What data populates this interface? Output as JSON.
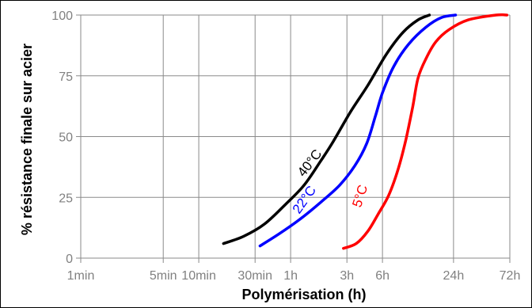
{
  "chart_data": {
    "type": "line",
    "xlabel": "Polymérisation (h)",
    "ylabel": "% résistance finale sur acier",
    "x_scale": "log",
    "x_ticks": [
      {
        "label": "1min",
        "hours": 0.0166667
      },
      {
        "label": "5min",
        "hours": 0.0833333
      },
      {
        "label": "10min",
        "hours": 0.1666667
      },
      {
        "label": "30min",
        "hours": 0.5
      },
      {
        "label": "1h",
        "hours": 1
      },
      {
        "label": "3h",
        "hours": 3
      },
      {
        "label": "6h",
        "hours": 6
      },
      {
        "label": "24h",
        "hours": 24
      },
      {
        "label": "72h",
        "hours": 72
      }
    ],
    "y_ticks": [
      0,
      25,
      50,
      75,
      100
    ],
    "ylim": [
      0,
      100
    ],
    "grid": true,
    "series": [
      {
        "name": "40°C",
        "color": "#000000",
        "points": [
          [
            0.27,
            6
          ],
          [
            0.4,
            9
          ],
          [
            0.6,
            14
          ],
          [
            0.9,
            22
          ],
          [
            1.3,
            30
          ],
          [
            1.8,
            40
          ],
          [
            2.3,
            48
          ],
          [
            3.2,
            60
          ],
          [
            4.5,
            71
          ],
          [
            6.5,
            84
          ],
          [
            9,
            93
          ],
          [
            12,
            98
          ],
          [
            15,
            100
          ]
        ]
      },
      {
        "name": "22°C",
        "color": "#0000ff",
        "points": [
          [
            0.55,
            5
          ],
          [
            0.8,
            10
          ],
          [
            1.2,
            16
          ],
          [
            1.8,
            23
          ],
          [
            2.6,
            30
          ],
          [
            3.5,
            38
          ],
          [
            4.4,
            47
          ],
          [
            5.2,
            58
          ],
          [
            6,
            68
          ],
          [
            7.5,
            79
          ],
          [
            10,
            88
          ],
          [
            14,
            95
          ],
          [
            19,
            99
          ],
          [
            25,
            100
          ]
        ]
      },
      {
        "name": "5°C",
        "color": "#ff0000",
        "points": [
          [
            2.8,
            4
          ],
          [
            3.6,
            6
          ],
          [
            4.5,
            11
          ],
          [
            5.5,
            18
          ],
          [
            6.8,
            26
          ],
          [
            8.2,
            37
          ],
          [
            9.5,
            49
          ],
          [
            10.8,
            62
          ],
          [
            12,
            74
          ],
          [
            14,
            82
          ],
          [
            17,
            89
          ],
          [
            22,
            94
          ],
          [
            32,
            98
          ],
          [
            55,
            100
          ],
          [
            68,
            100
          ]
        ]
      }
    ]
  }
}
